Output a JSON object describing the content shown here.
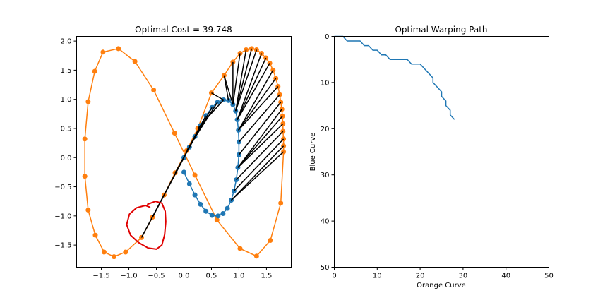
{
  "chart_data": [
    {
      "type": "scatter",
      "title": "Optimal Cost = 39.748",
      "xlabel": "",
      "ylabel": "",
      "xlim": [
        -1.95,
        1.95
      ],
      "ylim": [
        -1.88,
        2.08
      ],
      "xticks": [
        -1.5,
        -1.0,
        -0.5,
        0.0,
        0.5,
        1.0,
        1.5
      ],
      "xtick_labels": [
        "−1.5",
        "−1.0",
        "−0.5",
        "0.0",
        "0.5",
        "1.0",
        "1.5"
      ],
      "yticks": [
        2.0,
        1.5,
        1.0,
        0.5,
        0.0,
        -0.5,
        -1.0,
        -1.5
      ],
      "ytick_labels": [
        "2.0",
        "1.5",
        "1.0",
        "0.5",
        "0.0",
        "−0.5",
        "−1.0",
        "−1.5"
      ],
      "colors": {
        "blue": "#1f77b4",
        "orange": "#ff7f0e",
        "match_lines": "#000000",
        "annotation": "#e00000"
      },
      "series": [
        {
          "color": "#1f77b4",
          "points": [
            [
              0.0,
              0.0
            ],
            [
              0.1,
              0.18
            ],
            [
              0.2,
              0.36
            ],
            [
              0.3,
              0.55
            ],
            [
              0.4,
              0.72
            ],
            [
              0.51,
              0.86
            ],
            [
              0.61,
              0.95
            ],
            [
              0.72,
              0.99
            ],
            [
              0.81,
              0.98
            ],
            [
              0.89,
              0.91
            ],
            [
              0.94,
              0.8
            ],
            [
              0.97,
              0.65
            ],
            [
              0.99,
              0.47
            ],
            [
              1.0,
              0.27
            ],
            [
              1.0,
              0.05
            ],
            [
              0.98,
              -0.17
            ],
            [
              0.95,
              -0.38
            ],
            [
              0.91,
              -0.57
            ],
            [
              0.86,
              -0.73
            ],
            [
              0.79,
              -0.87
            ],
            [
              0.71,
              -0.96
            ],
            [
              0.62,
              -1.0
            ],
            [
              0.51,
              -0.99
            ],
            [
              0.4,
              -0.92
            ],
            [
              0.3,
              -0.8
            ],
            [
              0.2,
              -0.64
            ],
            [
              0.1,
              -0.45
            ],
            [
              0.0,
              -0.25
            ]
          ]
        },
        {
          "color": "#ff7f0e",
          "points": [
            [
              -0.77,
              -1.37
            ],
            [
              -0.57,
              -1.02
            ],
            [
              -0.36,
              -0.64
            ],
            [
              -0.16,
              -0.26
            ],
            [
              0.05,
              0.12
            ],
            [
              0.25,
              0.5
            ],
            [
              0.5,
              1.11
            ],
            [
              0.73,
              1.41
            ],
            [
              0.89,
              1.64
            ],
            [
              1.02,
              1.79
            ],
            [
              1.13,
              1.85
            ],
            [
              1.23,
              1.87
            ],
            [
              1.32,
              1.85
            ],
            [
              1.41,
              1.79
            ],
            [
              1.49,
              1.71
            ],
            [
              1.56,
              1.62
            ],
            [
              1.62,
              1.5
            ],
            [
              1.67,
              1.36
            ],
            [
              1.71,
              1.22
            ],
            [
              1.74,
              1.08
            ],
            [
              1.76,
              0.95
            ],
            [
              1.78,
              0.83
            ],
            [
              1.79,
              0.71
            ],
            [
              1.8,
              0.58
            ],
            [
              1.8,
              0.45
            ],
            [
              1.81,
              0.32
            ],
            [
              1.81,
              0.2
            ],
            [
              1.81,
              0.1
            ]
          ],
          "continuation": [
            [
              1.81,
              0.1
            ],
            [
              1.76,
              -0.78
            ],
            [
              1.57,
              -1.42
            ],
            [
              1.32,
              -1.69
            ],
            [
              1.02,
              -1.56
            ],
            [
              0.6,
              -1.07
            ],
            [
              0.2,
              -0.3
            ],
            [
              -0.17,
              0.42
            ],
            [
              -0.55,
              1.16
            ],
            [
              -0.89,
              1.65
            ],
            [
              -1.19,
              1.87
            ],
            [
              -1.47,
              1.81
            ],
            [
              -1.62,
              1.48
            ],
            [
              -1.74,
              0.96
            ],
            [
              -1.8,
              0.32
            ],
            [
              -1.8,
              -0.32
            ],
            [
              -1.74,
              -0.9
            ],
            [
              -1.61,
              -1.33
            ],
            [
              -1.45,
              -1.62
            ],
            [
              -1.27,
              -1.7
            ],
            [
              -1.06,
              -1.62
            ],
            [
              -0.77,
              -1.37
            ]
          ]
        }
      ],
      "matches": [
        [
          0,
          0
        ],
        [
          1,
          0
        ],
        [
          2,
          1
        ],
        [
          3,
          1
        ],
        [
          4,
          2
        ],
        [
          5,
          3
        ],
        [
          6,
          4
        ],
        [
          7,
          5
        ],
        [
          7,
          6
        ],
        [
          8,
          7
        ],
        [
          9,
          7
        ],
        [
          9,
          8
        ],
        [
          9,
          9
        ],
        [
          10,
          10
        ],
        [
          10,
          11
        ],
        [
          10,
          12
        ],
        [
          11,
          13
        ],
        [
          11,
          14
        ],
        [
          11,
          15
        ],
        [
          12,
          16
        ],
        [
          12,
          17
        ],
        [
          12,
          18
        ],
        [
          13,
          19
        ],
        [
          14,
          20
        ],
        [
          15,
          21
        ],
        [
          15,
          22
        ],
        [
          15,
          23
        ],
        [
          16,
          24
        ],
        [
          17,
          25
        ],
        [
          18,
          26
        ],
        [
          18,
          27
        ]
      ],
      "annotation": {
        "shape": "freehand circle",
        "color": "#e00000",
        "path": [
          [
            -0.66,
            -0.8
          ],
          [
            -0.52,
            -0.75
          ],
          [
            -0.4,
            -0.78
          ],
          [
            -0.34,
            -0.92
          ],
          [
            -0.33,
            -1.1
          ],
          [
            -0.35,
            -1.32
          ],
          [
            -0.4,
            -1.5
          ],
          [
            -0.5,
            -1.57
          ],
          [
            -0.65,
            -1.55
          ],
          [
            -0.82,
            -1.46
          ],
          [
            -0.97,
            -1.33
          ],
          [
            -1.04,
            -1.15
          ],
          [
            -0.99,
            -0.97
          ],
          [
            -0.86,
            -0.86
          ],
          [
            -0.7,
            -0.82
          ],
          [
            -0.62,
            -0.85
          ]
        ]
      }
    },
    {
      "type": "line",
      "title": "Optimal Warping Path",
      "xlabel": "Orange Curve",
      "ylabel": "Blue Curve",
      "xlim": [
        0,
        50
      ],
      "ylim": [
        0,
        50
      ],
      "y_inverted": true,
      "xticks": [
        0,
        10,
        20,
        30,
        40,
        50
      ],
      "xtick_labels": [
        "0",
        "10",
        "20",
        "30",
        "40",
        "50"
      ],
      "yticks": [
        0,
        10,
        20,
        30,
        40,
        50
      ],
      "ytick_labels": [
        "0",
        "10",
        "20",
        "30",
        "40",
        "50"
      ],
      "color": "#1f77b4",
      "path": [
        [
          0,
          0
        ],
        [
          2,
          0
        ],
        [
          3,
          1
        ],
        [
          6,
          1
        ],
        [
          7,
          2
        ],
        [
          8,
          2
        ],
        [
          9,
          3
        ],
        [
          10,
          3
        ],
        [
          11,
          4
        ],
        [
          12,
          4
        ],
        [
          13,
          5
        ],
        [
          17,
          5
        ],
        [
          18,
          6
        ],
        [
          20,
          6
        ],
        [
          21,
          7
        ],
        [
          22,
          8
        ],
        [
          23,
          9
        ],
        [
          23,
          10
        ],
        [
          24,
          11
        ],
        [
          25,
          12
        ],
        [
          25,
          13
        ],
        [
          26,
          14
        ],
        [
          26,
          15
        ],
        [
          27,
          16
        ],
        [
          27,
          17
        ],
        [
          28,
          18
        ]
      ]
    }
  ]
}
